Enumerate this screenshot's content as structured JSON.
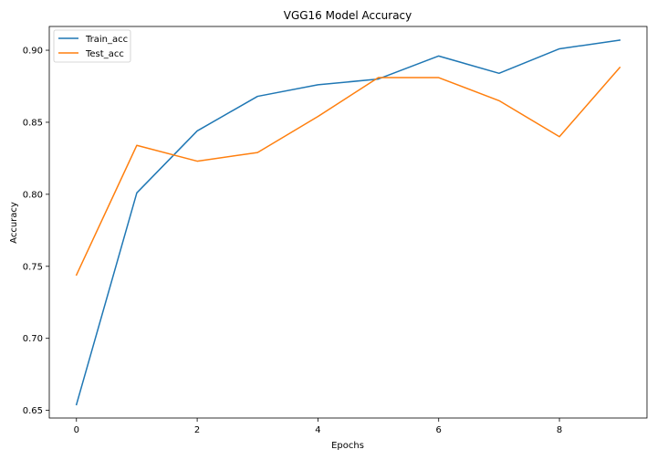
{
  "chart_data": {
    "type": "line",
    "title": "VGG16 Model Accuracy",
    "xlabel": "Epochs",
    "ylabel": "Accuracy",
    "x": [
      0,
      1,
      2,
      3,
      4,
      5,
      6,
      7,
      8,
      9
    ],
    "xlim": [
      -0.45,
      9.45
    ],
    "ylim": [
      0.6447,
      0.9165
    ],
    "xticks": [
      0,
      2,
      4,
      6,
      8
    ],
    "xtick_labels": [
      "0",
      "2",
      "4",
      "6",
      "8"
    ],
    "yticks": [
      0.65,
      0.7,
      0.75,
      0.8,
      0.85,
      0.9
    ],
    "ytick_labels": [
      "0.65",
      "0.70",
      "0.75",
      "0.80",
      "0.85",
      "0.90"
    ],
    "grid": false,
    "legend_position": "top-left",
    "series": [
      {
        "name": "Train_acc",
        "color": "#1f77b4",
        "values": [
          0.654,
          0.801,
          0.844,
          0.868,
          0.876,
          0.88,
          0.896,
          0.884,
          0.901,
          0.907
        ]
      },
      {
        "name": "Test_acc",
        "color": "#ff7f0e",
        "values": [
          0.744,
          0.834,
          0.823,
          0.829,
          0.854,
          0.881,
          0.881,
          0.865,
          0.84,
          0.888
        ]
      }
    ]
  }
}
